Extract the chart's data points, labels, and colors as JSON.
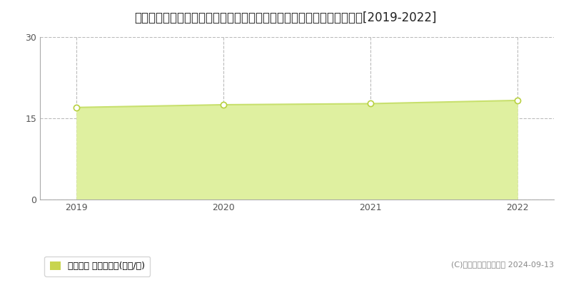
{
  "title": "北海道札幌市北区筍路３条４丁目３８番５７５外　地価公示　地価推移[2019-2022]",
  "years": [
    2019,
    2020,
    2021,
    2022
  ],
  "values": [
    17.0,
    17.5,
    17.7,
    18.3
  ],
  "ylim": [
    0,
    30
  ],
  "yticks": [
    0,
    15,
    30
  ],
  "line_color": "#c8e06e",
  "fill_color": "#dff0a0",
  "marker_facecolor": "#ffffff",
  "marker_edgecolor": "#b8d040",
  "bg_color": "#ffffff",
  "grid_color": "#bbbbbb",
  "legend_label": "地価公示 平均嵪単価(万円/嵪)",
  "legend_marker_color": "#c8d44e",
  "copyright_text": "(C)土地価格ドットコム 2024-09-13",
  "title_fontsize": 12,
  "axis_fontsize": 9,
  "legend_fontsize": 9,
  "copyright_fontsize": 8,
  "spine_color": "#aaaaaa"
}
